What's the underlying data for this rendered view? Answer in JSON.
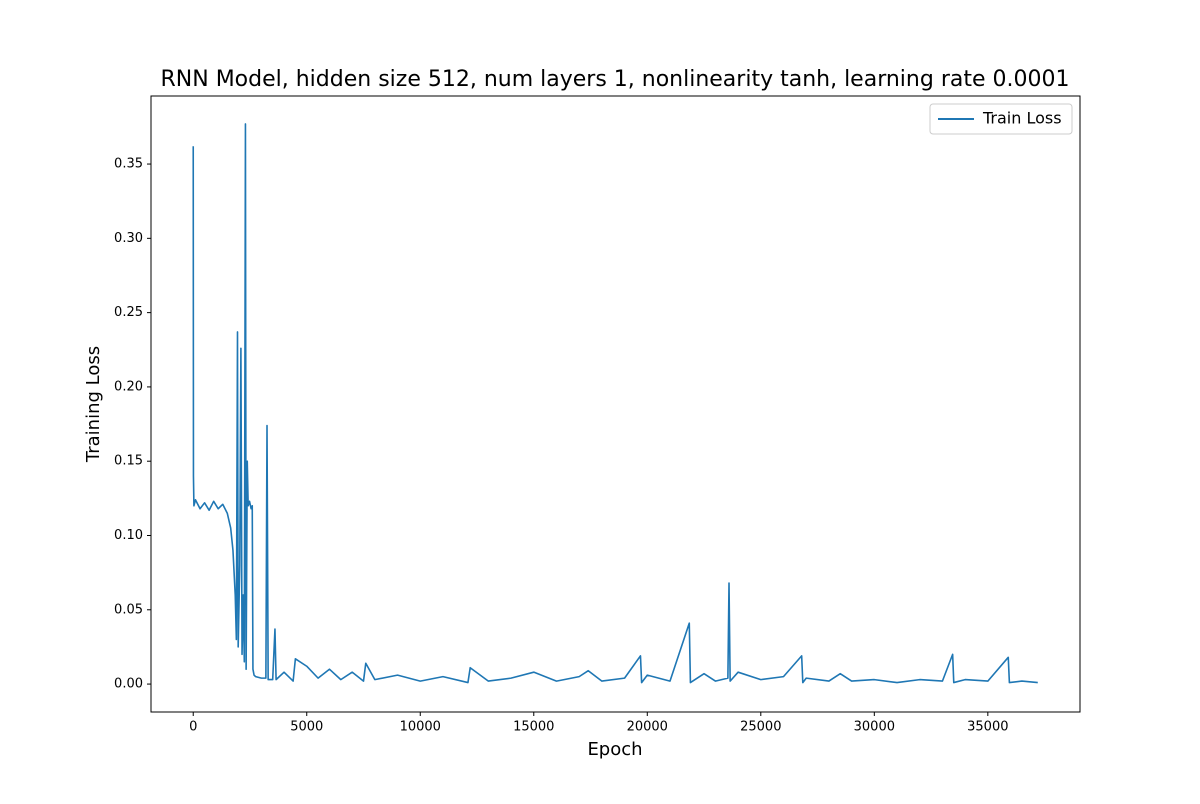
{
  "chart_data": {
    "type": "line",
    "title": "RNN Model, hidden size 512, num layers 1, nonlinearity tanh, learning rate 0.0001",
    "x_label": "Epoch",
    "y_label": "Training Loss",
    "x": [
      0,
      10,
      30,
      100,
      300,
      500,
      700,
      900,
      1100,
      1300,
      1500,
      1650,
      1750,
      1850,
      1900,
      1950,
      1980,
      2050,
      2100,
      2150,
      2200,
      2250,
      2300,
      2330,
      2380,
      2420,
      2480,
      2550,
      2600,
      2630,
      2680,
      2750,
      3000,
      3200,
      3250,
      3300,
      3500,
      3600,
      3650,
      4000,
      4400,
      4500,
      5000,
      5500,
      6000,
      6500,
      7000,
      7500,
      7600,
      8000,
      9000,
      10000,
      11000,
      12100,
      12200,
      13000,
      14000,
      15000,
      16000,
      17000,
      17400,
      18000,
      19000,
      19700,
      19750,
      20000,
      21000,
      21850,
      21900,
      22500,
      23000,
      23550,
      23600,
      23650,
      24000,
      25000,
      26000,
      26800,
      26850,
      27000,
      28000,
      28500,
      29000,
      30000,
      31000,
      32000,
      33000,
      33450,
      33500,
      34000,
      35000,
      35900,
      35950,
      36500,
      37200
    ],
    "series": [
      {
        "name": "Train Loss",
        "color": "#1f77b4",
        "values": [
          0.362,
          0.14,
          0.12,
          0.124,
          0.118,
          0.122,
          0.117,
          0.123,
          0.118,
          0.121,
          0.115,
          0.105,
          0.09,
          0.06,
          0.03,
          0.237,
          0.025,
          0.08,
          0.226,
          0.02,
          0.06,
          0.015,
          0.377,
          0.01,
          0.15,
          0.12,
          0.123,
          0.118,
          0.12,
          0.01,
          0.006,
          0.005,
          0.004,
          0.004,
          0.174,
          0.003,
          0.003,
          0.037,
          0.003,
          0.008,
          0.002,
          0.017,
          0.012,
          0.004,
          0.01,
          0.003,
          0.008,
          0.002,
          0.014,
          0.003,
          0.006,
          0.002,
          0.005,
          0.001,
          0.011,
          0.002,
          0.004,
          0.008,
          0.002,
          0.005,
          0.009,
          0.002,
          0.004,
          0.019,
          0.001,
          0.006,
          0.002,
          0.041,
          0.001,
          0.007,
          0.002,
          0.004,
          0.068,
          0.002,
          0.008,
          0.003,
          0.005,
          0.019,
          0.001,
          0.004,
          0.002,
          0.007,
          0.002,
          0.003,
          0.001,
          0.003,
          0.002,
          0.02,
          0.001,
          0.003,
          0.002,
          0.018,
          0.001,
          0.002,
          0.001
        ]
      }
    ],
    "xlim": [
      -1860,
      39060
    ],
    "xticks": [
      0,
      5000,
      10000,
      15000,
      20000,
      25000,
      30000,
      35000
    ],
    "ylim": [
      -0.0188,
      0.3958
    ],
    "yticks": [
      {
        "value": 0,
        "label": "0.00"
      },
      0.05,
      {
        "value": 0.1,
        "label": "0.10"
      },
      0.15,
      {
        "value": 0.2,
        "label": "0.20"
      },
      0.25,
      {
        "value": 0.3,
        "label": "0.30"
      },
      0.35
    ],
    "grid": false,
    "legend": "upper right"
  }
}
